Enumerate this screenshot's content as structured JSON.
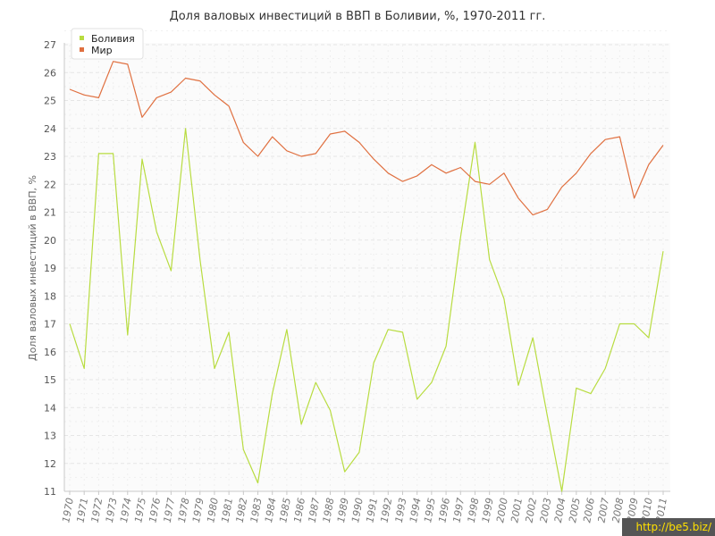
{
  "chart_data": {
    "type": "line",
    "title": "Доля валовых инвестиций в ВВП в Боливии, %, 1970-2011 гг.",
    "xlabel": "",
    "ylabel": "Доля валовых инвестиций в ВВП, %",
    "ylim": [
      11,
      27
    ],
    "yticks": [
      "11",
      "12",
      "13",
      "14",
      "15",
      "16",
      "17",
      "18",
      "19",
      "20",
      "21",
      "22",
      "23",
      "24",
      "25",
      "26",
      "27"
    ],
    "x": [
      "1970",
      "1971",
      "1972",
      "1973",
      "1974",
      "1975",
      "1976",
      "1977",
      "1978",
      "1979",
      "1980",
      "1981",
      "1982",
      "1983",
      "1984",
      "1985",
      "1986",
      "1987",
      "1988",
      "1989",
      "1990",
      "1991",
      "1992",
      "1993",
      "1994",
      "1995",
      "1996",
      "1997",
      "1998",
      "1999",
      "2000",
      "2001",
      "2002",
      "2003",
      "2004",
      "2005",
      "2006",
      "2007",
      "2008",
      "2009",
      "2010",
      "2011"
    ],
    "series": [
      {
        "name": "Боливия",
        "color": "#b8dc40",
        "values": [
          17.0,
          15.4,
          23.1,
          23.1,
          16.6,
          22.9,
          20.3,
          18.9,
          24.0,
          19.3,
          15.4,
          16.7,
          12.5,
          11.3,
          14.5,
          16.8,
          13.4,
          14.9,
          13.9,
          11.7,
          12.4,
          15.6,
          16.8,
          16.7,
          14.3,
          14.9,
          16.2,
          20.1,
          23.5,
          19.3,
          17.9,
          14.8,
          16.5,
          13.7,
          11.0,
          14.7,
          14.5,
          15.4,
          17.0,
          17.0,
          16.5,
          19.6
        ]
      },
      {
        "name": "Мир",
        "color": "#e07040",
        "values": [
          25.4,
          25.2,
          25.1,
          26.4,
          26.3,
          24.4,
          25.1,
          25.3,
          25.8,
          25.7,
          25.2,
          24.8,
          23.5,
          23.0,
          23.7,
          23.2,
          23.0,
          23.1,
          23.8,
          23.9,
          23.5,
          22.9,
          22.4,
          22.1,
          22.3,
          22.7,
          22.4,
          22.6,
          22.1,
          22.0,
          22.4,
          21.5,
          20.9,
          21.1,
          21.9,
          22.4,
          23.1,
          23.6,
          23.7,
          21.5,
          22.7,
          23.4
        ]
      }
    ],
    "grid": true,
    "legend_position": "top-left"
  },
  "watermark": "http://be5.biz/"
}
